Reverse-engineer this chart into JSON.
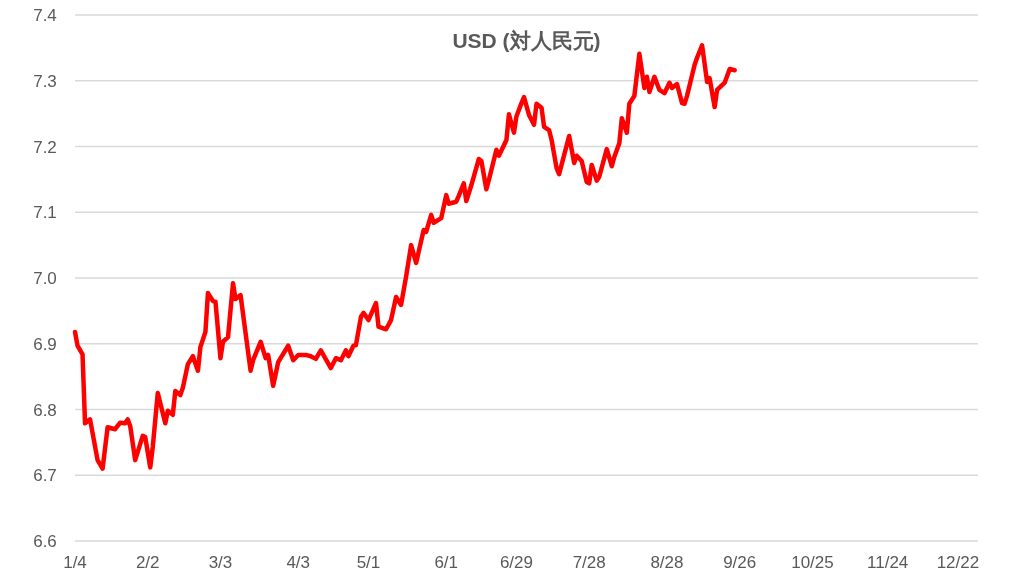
{
  "chart_data": {
    "type": "line",
    "title": "USD (対人民元)",
    "xlim": [
      "--01-04",
      "--12-30"
    ],
    "xticks": [
      {
        "value": "--01-04",
        "label": "1/4"
      },
      {
        "value": "--02-02",
        "label": "2/2"
      },
      {
        "value": "--03-03",
        "label": "3/3"
      },
      {
        "value": "--04-03",
        "label": "4/3"
      },
      {
        "value": "--05-01",
        "label": "5/1"
      },
      {
        "value": "--06-01",
        "label": "6/1"
      },
      {
        "value": "--06-29",
        "label": "6/29"
      },
      {
        "value": "--07-28",
        "label": "7/28"
      },
      {
        "value": "--08-28",
        "label": "8/28"
      },
      {
        "value": "--09-26",
        "label": "9/26"
      },
      {
        "value": "--10-25",
        "label": "10/25"
      },
      {
        "value": "--11-24",
        "label": "11/24"
      },
      {
        "value": "--12-22",
        "label": "12/22"
      }
    ],
    "ylim": [
      6.6,
      7.4
    ],
    "yticks": [
      6.6,
      6.7,
      6.8,
      6.9,
      {
        "value": 7,
        "label": "7.0"
      },
      7.1,
      7.2,
      7.3,
      7.4
    ],
    "grid": "y",
    "series": [
      {
        "color": "#ff0000",
        "x": [
          "--01-04",
          "--01-05",
          "--01-07",
          "--01-08",
          "--01-10",
          "--01-13",
          "--01-15",
          "--01-17",
          "--01-20",
          "--01-22",
          "--01-24",
          "--01-25",
          "--01-26",
          "--01-28",
          "--01-31",
          "--02-01",
          "--02-03",
          "--02-04",
          "--02-06",
          "--02-09",
          "--02-10",
          "--02-12",
          "--02-13",
          "--02-15",
          "--02-16",
          "--02-18",
          "--02-20",
          "--02-22",
          "--02-23",
          "--02-25",
          "--02-26",
          "--02-28",
          "--03-01",
          "--03-03",
          "--03-04",
          "--03-06",
          "--03-08",
          "--03-09",
          "--03-11",
          "--03-15",
          "--03-16",
          "--03-19",
          "--03-21",
          "--03-22",
          "--03-24",
          "--03-26",
          "--03-30",
          "--04-01",
          "--04-03",
          "--04-06",
          "--04-08",
          "--04-10",
          "--04-12",
          "--04-16",
          "--04-18",
          "--04-20",
          "--04-22",
          "--04-23",
          "--04-25",
          "--04-26",
          "--04-28",
          "--04-29",
          "--05-01",
          "--05-04",
          "--05-05",
          "--05-08",
          "--05-10",
          "--05-12",
          "--05-14",
          "--05-16",
          "--05-18",
          "--05-20",
          "--05-23",
          "--05-24",
          "--05-26",
          "--05-27",
          "--05-30",
          "--06-01",
          "--06-02",
          "--06-05",
          "--06-06",
          "--06-08",
          "--06-09",
          "--06-11",
          "--06-14",
          "--06-15",
          "--06-17",
          "--06-18",
          "--06-21",
          "--06-22",
          "--06-25",
          "--06-26",
          "--06-28",
          "--06-29",
          "--07-01",
          "--07-02",
          "--07-04",
          "--07-06",
          "--07-07",
          "--07-09",
          "--07-10",
          "--07-12",
          "--07-13",
          "--07-15",
          "--07-16",
          "--07-20",
          "--07-22",
          "--07-23",
          "--07-25",
          "--07-27",
          "--07-28",
          "--07-29",
          "--07-31",
          "--08-01",
          "--08-04",
          "--08-06",
          "--08-07",
          "--08-09",
          "--08-10",
          "--08-12",
          "--08-13",
          "--08-15",
          "--08-17",
          "--08-19",
          "--08-20",
          "--08-21",
          "--08-23",
          "--08-25",
          "--08-27",
          "--08-29",
          "--08-30",
          "--09-01",
          "--09-03",
          "--09-04",
          "--09-05",
          "--09-08",
          "--09-09",
          "--09-11",
          "--09-13",
          "--09-14",
          "--09-16",
          "--09-17",
          "--09-20",
          "--09-22",
          "--09-24"
        ],
        "values": [
          6.918,
          6.897,
          6.884,
          6.779,
          6.785,
          6.723,
          6.71,
          6.773,
          6.77,
          6.78,
          6.779,
          6.785,
          6.775,
          6.723,
          6.76,
          6.758,
          6.712,
          6.743,
          6.825,
          6.779,
          6.798,
          6.792,
          6.828,
          6.822,
          6.833,
          6.869,
          6.881,
          6.859,
          6.895,
          6.918,
          6.977,
          6.965,
          6.964,
          6.878,
          6.903,
          6.91,
          6.992,
          6.968,
          6.974,
          6.859,
          6.875,
          6.903,
          6.878,
          6.883,
          6.836,
          6.872,
          6.897,
          6.875,
          6.883,
          6.883,
          6.881,
          6.877,
          6.89,
          6.863,
          6.878,
          6.875,
          6.89,
          6.881,
          6.897,
          6.898,
          6.941,
          6.947,
          6.936,
          6.962,
          6.926,
          6.922,
          6.936,
          6.971,
          6.959,
          7.002,
          7.05,
          7.023,
          7.073,
          7.07,
          7.096,
          7.084,
          7.091,
          7.126,
          7.113,
          7.116,
          7.125,
          7.144,
          7.117,
          7.141,
          7.181,
          7.178,
          7.135,
          7.149,
          7.195,
          7.186,
          7.21,
          7.249,
          7.221,
          7.246,
          7.266,
          7.275,
          7.248,
          7.233,
          7.265,
          7.259,
          7.23,
          7.225,
          7.21,
          7.167,
          7.158,
          7.216,
          7.175,
          7.186,
          7.178,
          7.146,
          7.144,
          7.172,
          7.148,
          7.154,
          7.196,
          7.17,
          7.184,
          7.205,
          7.243,
          7.221,
          7.265,
          7.277,
          7.341,
          7.289,
          7.306,
          7.283,
          7.306,
          7.286,
          7.281,
          7.297,
          7.289,
          7.295,
          7.266,
          7.265,
          7.277,
          7.324,
          7.335,
          7.354,
          7.298,
          7.304,
          7.26,
          7.286,
          7.297,
          7.318,
          7.316
        ]
      }
    ]
  }
}
